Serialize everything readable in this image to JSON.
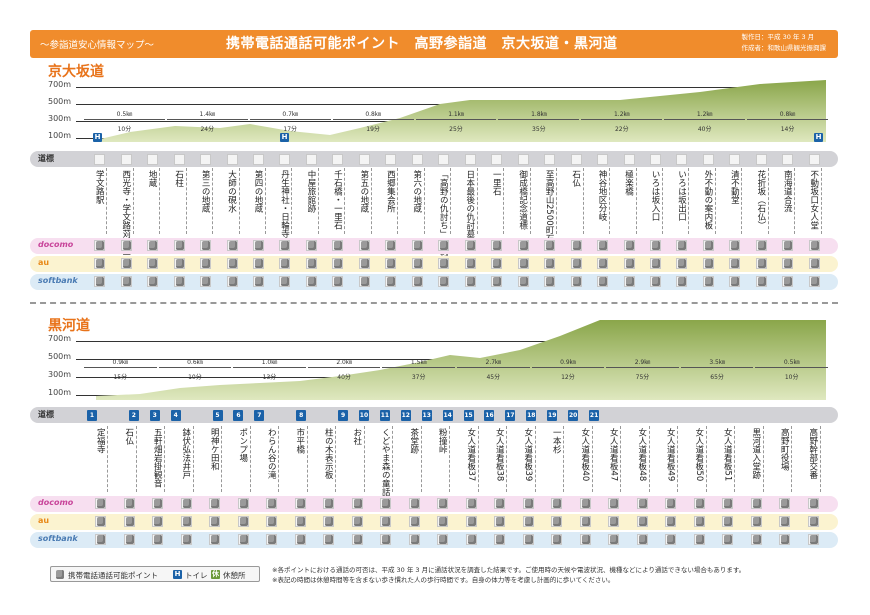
{
  "header": {
    "subtitle": "～参詣道安心情報マップ～",
    "title": "携帯電話通話可能ポイント　高野参詣道　京大坂道・黒河道",
    "made": "製作日：平成 30 年 3 月",
    "author": "作成者：和歌山県観光振興課"
  },
  "altitudes": [
    "700m",
    "500m",
    "300m",
    "100m"
  ],
  "rows": {
    "michi": "道標",
    "docomo": "docomo",
    "au": "au",
    "softbank": "softbank"
  },
  "kyo": {
    "title": "京大坂道",
    "segments": [
      {
        "d": "0.5㎞",
        "t": "10分"
      },
      {
        "d": "1.4㎞",
        "t": "24分"
      },
      {
        "d": "0.7㎞",
        "t": "17分"
      },
      {
        "d": "0.8㎞",
        "t": "19分"
      },
      {
        "d": "1.1㎞",
        "t": "25分"
      },
      {
        "d": "1.8㎞",
        "t": "35分"
      },
      {
        "d": "1.2㎞",
        "t": "22分"
      },
      {
        "d": "1.2㎞",
        "t": "40分"
      },
      {
        "d": "0.8㎞",
        "t": "14分"
      }
    ],
    "points": [
      "学文路駅",
      "西光寺・学文路苅萱堂",
      "地蔵",
      "石柱",
      "第三の地蔵",
      "大師の硯水",
      "第四の地蔵",
      "丹生神社・日輪寺",
      "中屋旅館跡",
      "千石橋・一里石",
      "第五の地蔵",
      "西郷集会所",
      "第六の地蔵",
      "「高野の仇討ち」解説板",
      "日本最後の仇討墓所",
      "一里石",
      "御成橋記念道標",
      "至高野山2500町石",
      "石仏",
      "神谷地区分岐",
      "極楽橋",
      "いろは坂入口",
      "いろは坂出口",
      "外不動の案内板",
      "清不動堂",
      "花折坂（石仏）",
      "南海道合流",
      "不動坂口女人堂"
    ]
  },
  "kuro": {
    "title": "黒河道",
    "segments": [
      {
        "d": "0.9㎞",
        "t": "15分"
      },
      {
        "d": "0.6㎞",
        "t": "10分"
      },
      {
        "d": "1.0㎞",
        "t": "13分"
      },
      {
        "d": "2.0㎞",
        "t": "40分"
      },
      {
        "d": "1.5㎞",
        "t": "37分"
      },
      {
        "d": "2.7㎞",
        "t": "45分"
      },
      {
        "d": "0.9㎞",
        "t": "12分"
      },
      {
        "d": "2.9㎞",
        "t": "75分"
      },
      {
        "d": "3.5㎞",
        "t": "65分"
      },
      {
        "d": "0.5㎞",
        "t": "10分"
      }
    ],
    "markers": [
      "1",
      "",
      "2",
      "3",
      "4",
      "",
      "5",
      "6",
      "7",
      "",
      "8",
      "",
      "9",
      "10",
      "11",
      "12",
      "13",
      "14",
      "15",
      "16",
      "17",
      "18",
      "19",
      "20",
      "21"
    ],
    "points": [
      "定福寺",
      "石仏",
      "五軒畑岩掛観音",
      "鉢伏弘法井戸",
      "明神ケ田和",
      "ポンプ場",
      "わらん谷の滝",
      "市平橋",
      "柱の木表示板",
      "お社",
      "くどやま森の童話館",
      "茶堂跡",
      "粉撞峠",
      "女人道看板37",
      "女人道看板38",
      "女人道看板39",
      "一本杉",
      "女人道看板40",
      "女人道看板47",
      "女人道看板48",
      "女人道看板49",
      "女人道看板50",
      "女人道看板51",
      "黒河道入堂跡",
      "高野町役場",
      "高野幹部交番"
    ]
  },
  "legend": {
    "phone": "携帯電話通話可能ポイント",
    "toilet": "トイレ",
    "rest": "休憩所"
  },
  "notes": [
    "※各ポイントにおける通話の可否は、平成 30 年 3 月に通話状況を調査した結果です。ご使用時の天候や電波状況、機種などにより通話できない場合もあります。",
    "※表記の時間は休憩時間等を含まない歩き慣れた人の歩行時間です。自身の体力等を考慮し計画的に歩いてください。"
  ],
  "colors": {
    "header": "#f08c2c",
    "title": "#e8731a",
    "terrain": "#8aa64a",
    "terrainLight": "#cbd7a0"
  }
}
